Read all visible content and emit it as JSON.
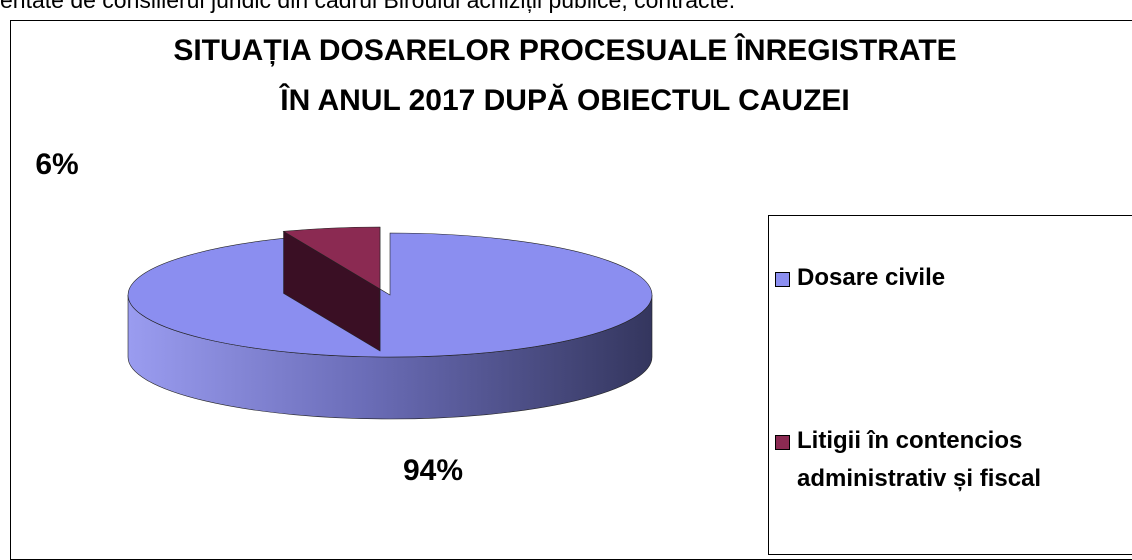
{
  "header": {
    "text": "entate de consilierul juridic din cadrul Biroului achiziții publice, contracte."
  },
  "chart_data": {
    "type": "pie",
    "title": [
      "SITUAȚIA DOSARELOR PROCESUALE ÎNREGISTRATE",
      "ÎN ANUL 2017 DUPĂ OBIECTUL CAUZEI"
    ],
    "categories": [
      "Dosare civile",
      "Litigii în contencios administrativ și fiscal"
    ],
    "values": [
      94,
      6
    ],
    "value_labels": [
      "94%",
      "6%"
    ],
    "colors": [
      "#8b8ef0",
      "#8b2a52"
    ],
    "legend": "right"
  }
}
